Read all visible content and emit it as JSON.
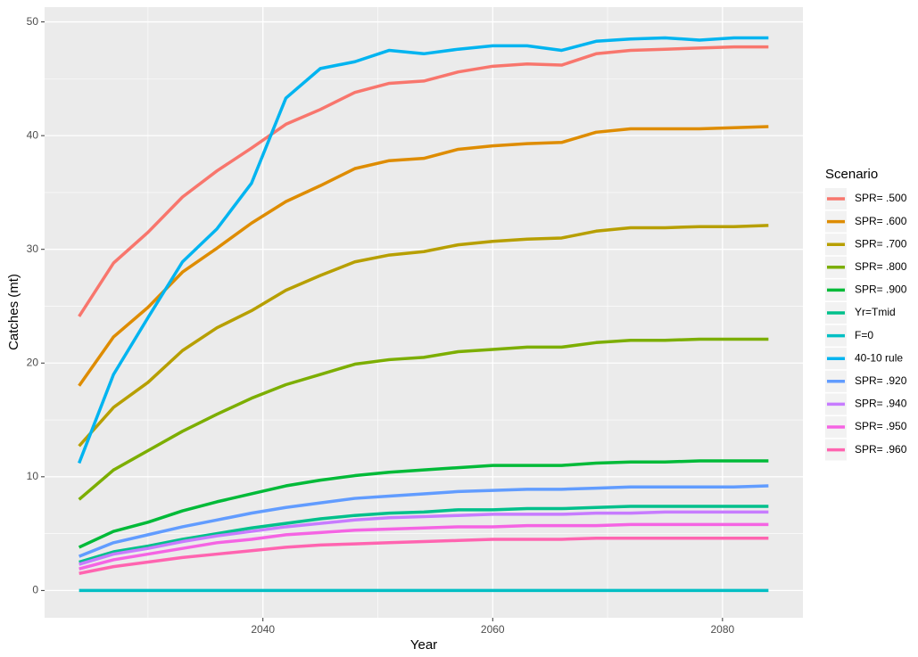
{
  "chart_data": {
    "type": "line",
    "x_label": "Year",
    "y_label": "Catches (mt)",
    "legend_title": "Scenario",
    "x": [
      2024,
      2027,
      2030,
      2033,
      2036,
      2039,
      2042,
      2045,
      2048,
      2051,
      2054,
      2057,
      2060,
      2063,
      2066,
      2069,
      2072,
      2075,
      2078,
      2081,
      2084
    ],
    "xlim": [
      2021,
      2087
    ],
    "xticks": [
      2040,
      2060,
      2080
    ],
    "ylim": [
      -2.4,
      51.3
    ],
    "yticks": [
      0,
      10,
      20,
      30,
      40,
      50
    ],
    "grid": true,
    "legend_position": "right",
    "series": [
      {
        "name": "SPR= .500",
        "color": "#F8766D",
        "values": [
          24.1,
          28.8,
          31.5,
          34.6,
          36.9,
          38.9,
          41,
          42.3,
          43.8,
          44.6,
          44.8,
          45.6,
          46.1,
          46.3,
          46.2,
          47.2,
          47.5,
          47.6,
          47.7,
          47.8,
          47.8
        ]
      },
      {
        "name": "SPR= .600",
        "color": "#DE8C00",
        "values": [
          18,
          22.3,
          24.9,
          28,
          30.1,
          32.3,
          34.2,
          35.6,
          37.1,
          37.8,
          38,
          38.8,
          39.1,
          39.3,
          39.4,
          40.3,
          40.6,
          40.6,
          40.6,
          40.7,
          40.8
        ]
      },
      {
        "name": "SPR= .700",
        "color": "#B79F00",
        "values": [
          12.7,
          16.1,
          18.3,
          21.1,
          23.1,
          24.6,
          26.4,
          27.7,
          28.9,
          29.5,
          29.8,
          30.4,
          30.7,
          30.9,
          31,
          31.6,
          31.9,
          31.9,
          32,
          32,
          32.1
        ]
      },
      {
        "name": "SPR= .800",
        "color": "#7CAE00",
        "values": [
          8,
          10.6,
          12.3,
          14,
          15.5,
          16.9,
          18.1,
          19,
          19.9,
          20.3,
          20.5,
          21,
          21.2,
          21.4,
          21.4,
          21.8,
          22,
          22,
          22.1,
          22.1,
          22.1
        ]
      },
      {
        "name": "SPR= .900",
        "color": "#00BA38",
        "values": [
          3.8,
          5.2,
          6,
          7,
          7.8,
          8.5,
          9.2,
          9.7,
          10.1,
          10.4,
          10.6,
          10.8,
          11,
          11,
          11,
          11.2,
          11.3,
          11.3,
          11.4,
          11.4,
          11.4
        ]
      },
      {
        "name": "Yr=Tmid",
        "color": "#00C08B",
        "values": [
          2.5,
          3.4,
          3.9,
          4.5,
          5,
          5.5,
          5.9,
          6.3,
          6.6,
          6.8,
          6.9,
          7.1,
          7.1,
          7.2,
          7.2,
          7.3,
          7.4,
          7.4,
          7.4,
          7.4,
          7.4
        ]
      },
      {
        "name": "F=0",
        "color": "#00BFC4",
        "values": [
          0,
          0,
          0,
          0,
          0,
          0,
          0,
          0,
          0,
          0,
          0,
          0,
          0,
          0,
          0,
          0,
          0,
          0,
          0,
          0,
          0
        ]
      },
      {
        "name": "40-10 rule",
        "color": "#00B4F0",
        "values": [
          11.2,
          19,
          24,
          28.9,
          31.8,
          35.8,
          43.3,
          45.9,
          46.5,
          47.5,
          47.2,
          47.6,
          47.9,
          47.9,
          47.5,
          48.3,
          48.5,
          48.6,
          48.4,
          48.6,
          48.6
        ]
      },
      {
        "name": "SPR= .920",
        "color": "#619CFF",
        "values": [
          3,
          4.2,
          4.9,
          5.6,
          6.2,
          6.8,
          7.3,
          7.7,
          8.1,
          8.3,
          8.5,
          8.7,
          8.8,
          8.9,
          8.9,
          9,
          9.1,
          9.1,
          9.1,
          9.1,
          9.2
        ]
      },
      {
        "name": "SPR= .940",
        "color": "#C77CFF",
        "values": [
          2.3,
          3.2,
          3.7,
          4.3,
          4.8,
          5.2,
          5.6,
          5.9,
          6.2,
          6.4,
          6.5,
          6.6,
          6.7,
          6.7,
          6.7,
          6.8,
          6.8,
          6.9,
          6.9,
          6.9,
          6.9
        ]
      },
      {
        "name": "SPR= .950",
        "color": "#F564E3",
        "values": [
          1.9,
          2.7,
          3.2,
          3.7,
          4.2,
          4.5,
          4.9,
          5.1,
          5.3,
          5.4,
          5.5,
          5.6,
          5.6,
          5.7,
          5.7,
          5.7,
          5.8,
          5.8,
          5.8,
          5.8,
          5.8
        ]
      },
      {
        "name": "SPR= .960",
        "color": "#FF64B0",
        "values": [
          1.5,
          2.1,
          2.5,
          2.9,
          3.2,
          3.5,
          3.8,
          4,
          4.1,
          4.2,
          4.3,
          4.4,
          4.5,
          4.5,
          4.5,
          4.6,
          4.6,
          4.6,
          4.6,
          4.6,
          4.6
        ]
      }
    ]
  }
}
